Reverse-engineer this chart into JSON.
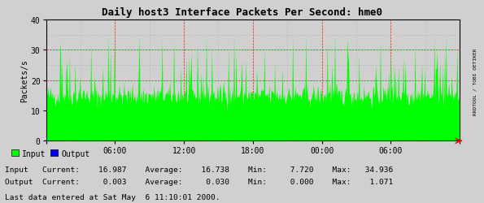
{
  "title": "Daily host3 Interface Packets Per Second: hme0",
  "ylabel": "Packets/s",
  "bg_color": "#d0d0d0",
  "plot_bg_color": "#d0d0d0",
  "grid_major_color": "#ff0000",
  "grid_minor_color": "#999999",
  "input_color": "#00ff00",
  "output_color": "#0000ff",
  "ylim": [
    0,
    40
  ],
  "yticks": [
    0,
    10,
    20,
    30,
    40
  ],
  "xtick_labels": [
    "",
    "06:00",
    "12:00",
    "18:00",
    "00:00",
    "06:00",
    ""
  ],
  "sidebar_text": "RRDTOOL / TOBI OETIKER",
  "legend_input": "Input",
  "legend_output": "Output",
  "footer": "Last data entered at Sat May  6 11:10:01 2000.",
  "input_current": "16.987",
  "input_average": "16.738",
  "input_min": "7.720",
  "input_max": "34.936",
  "output_current": "0.003",
  "output_average": "0.030",
  "output_min": "0.000",
  "output_max": "1.071",
  "n_points": 600
}
